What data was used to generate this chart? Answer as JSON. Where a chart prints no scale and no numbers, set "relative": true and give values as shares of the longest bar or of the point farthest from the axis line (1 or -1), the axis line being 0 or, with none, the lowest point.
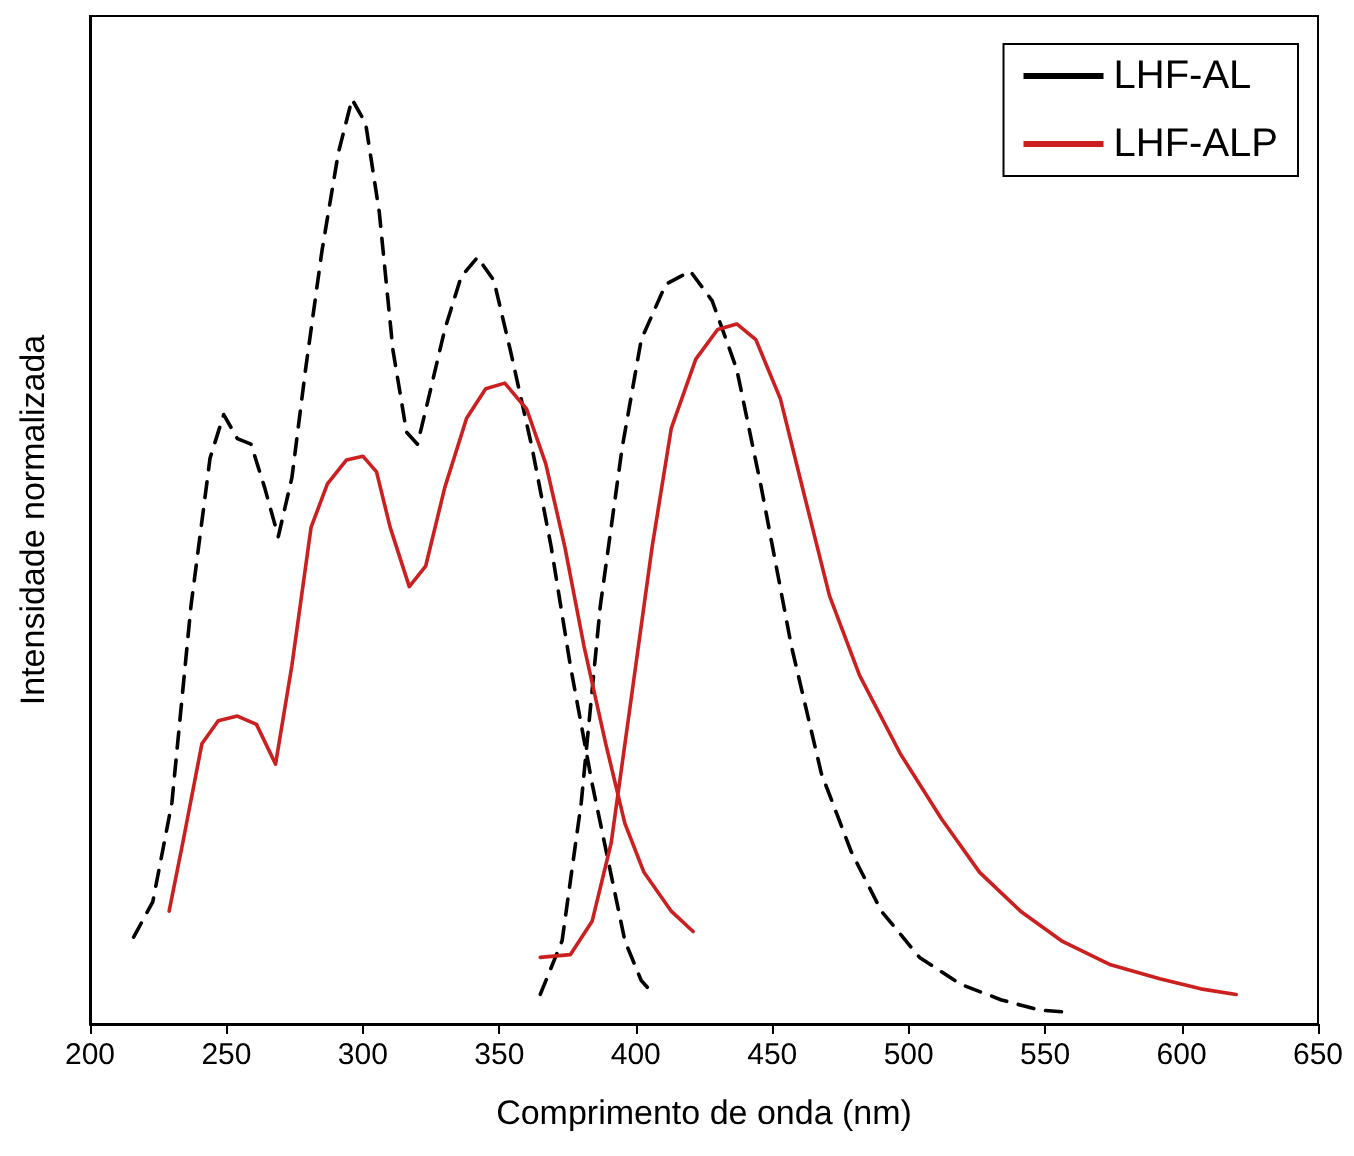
{
  "chart_data": {
    "type": "line",
    "relative": true,
    "xlabel": "Comprimento de onda (nm)",
    "ylabel": "Intensidade normalizada",
    "xlim": [
      200,
      650
    ],
    "xticks": [
      200,
      250,
      300,
      350,
      400,
      450,
      500,
      550,
      600,
      650
    ],
    "grid": false,
    "legend": "top right",
    "marker": "none",
    "series": [
      {
        "name": "LHF-AL",
        "color": "#000000",
        "line_style": "dashed",
        "x": [
          216,
          223,
          230,
          237,
          244,
          249,
          254,
          259,
          264,
          269,
          274,
          279,
          285,
          291,
          296,
          301,
          306,
          311,
          316,
          320,
          324,
          330,
          336,
          342,
          348,
          354,
          362,
          369,
          376,
          384,
          390,
          396,
          402,
          406,
          386,
          365,
          373,
          380,
          387,
          395,
          402,
          411,
          420,
          428,
          437,
          446,
          457,
          468,
          479,
          490,
          504,
          519,
          534,
          548,
          557
        ],
        "values": [
          0.094,
          0.132,
          0.239,
          0.452,
          0.612,
          0.659,
          0.633,
          0.627,
          0.58,
          0.527,
          0.591,
          0.708,
          0.836,
          0.942,
          1.0,
          0.974,
          0.878,
          0.729,
          0.64,
          0.627,
          0.676,
          0.751,
          0.808,
          0.829,
          0.804,
          0.729,
          0.623,
          0.516,
          0.388,
          0.26,
          0.175,
          0.09,
          0.047,
          0.034,
          null,
          0.032,
          0.09,
          0.239,
          0.452,
          0.623,
          0.74,
          0.8,
          0.814,
          0.782,
          0.708,
          0.58,
          0.409,
          0.271,
          0.186,
          0.122,
          0.072,
          0.043,
          0.026,
          0.015,
          0.013
        ]
      },
      {
        "name": "LHF-ALP",
        "color": "#cc1f1f",
        "line_style": "solid",
        "x": [
          229,
          234,
          241,
          247,
          254,
          261,
          268,
          274,
          281,
          287,
          294,
          300,
          305,
          310,
          317,
          323,
          330,
          338,
          345,
          352,
          360,
          367,
          374,
          381,
          389,
          396,
          403,
          413,
          421,
          393,
          365,
          376,
          384,
          391,
          398,
          406,
          413,
          422,
          430,
          437,
          444,
          453,
          462,
          471,
          482,
          497,
          512,
          526,
          541,
          556,
          574,
          592,
          607,
          620
        ],
        "values": [
          0.122,
          0.196,
          0.303,
          0.328,
          0.333,
          0.324,
          0.281,
          0.388,
          0.537,
          0.584,
          0.61,
          0.614,
          0.597,
          0.537,
          0.473,
          0.495,
          0.58,
          0.655,
          0.687,
          0.693,
          0.665,
          0.606,
          0.516,
          0.409,
          0.303,
          0.217,
          0.164,
          0.122,
          0.1,
          null,
          0.072,
          0.075,
          0.111,
          0.196,
          0.345,
          0.516,
          0.644,
          0.719,
          0.751,
          0.757,
          0.74,
          0.676,
          0.569,
          0.463,
          0.377,
          0.292,
          0.222,
          0.164,
          0.122,
          0.09,
          0.064,
          0.049,
          0.038,
          0.032
        ]
      }
    ]
  }
}
